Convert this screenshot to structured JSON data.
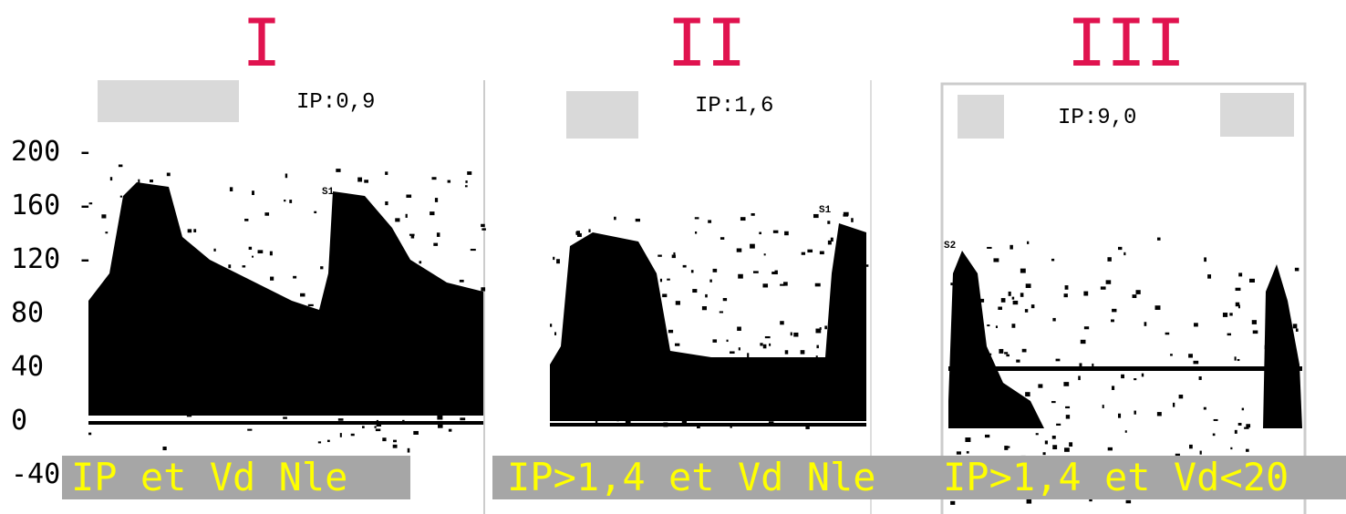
{
  "panels": [
    {
      "title": "I",
      "index": "IP:0,9",
      "caption": "IP et Vd Nle",
      "marker": "S1"
    },
    {
      "title": "II",
      "index": "IP:1,6",
      "caption": "IP>1,4 et Vd Nle",
      "marker": "S1"
    },
    {
      "title": "III",
      "index": "IP:9,0",
      "caption": "IP>1,4 et Vd<20",
      "marker": "S2"
    }
  ],
  "axis": {
    "labels": [
      "200 -",
      "160 -",
      "120 -",
      "80",
      "40",
      "0",
      "-40"
    ]
  }
}
